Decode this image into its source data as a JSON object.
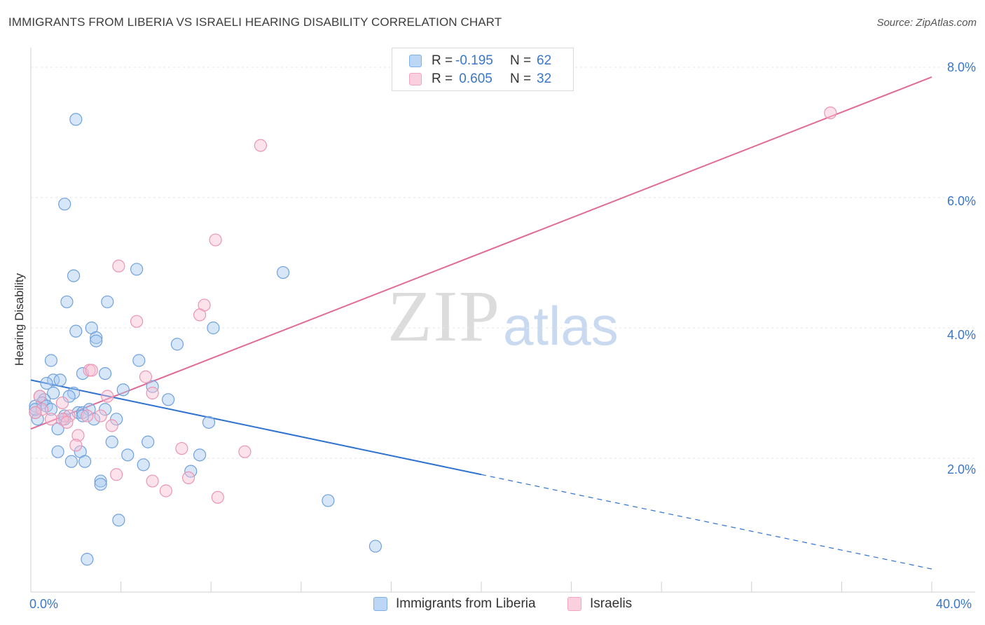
{
  "title": "IMMIGRANTS FROM LIBERIA VS ISRAELI HEARING DISABILITY CORRELATION CHART",
  "source": "Source: ZipAtlas.com",
  "watermark": {
    "zip": "ZIP",
    "atlas": "atlas"
  },
  "colors": {
    "blue": "#7fb0e8",
    "blue_line": "#2f72d0",
    "pink": "#f3a6c0",
    "pink_line": "#e06b97",
    "tick_text": "#3a76c9",
    "grid": "#e6e6e6"
  },
  "legend_top": [
    {
      "r_label": "R =",
      "r_value": "-0.195",
      "n_label": "N =",
      "n_value": "62"
    },
    {
      "r_label": "R =",
      "r_value": " 0.605",
      "n_label": "N =",
      "n_value": "32"
    }
  ],
  "legend_bottom": [
    "Immigrants from Liberia",
    "Israelis"
  ],
  "chart_data": {
    "type": "scatter",
    "title": "IMMIGRANTS FROM LIBERIA VS ISRAELI HEARING DISABILITY CORRELATION CHART",
    "xlabel": "",
    "ylabel": "Hearing Disability",
    "xlim": [
      0,
      40
    ],
    "ylim": [
      0,
      8.3
    ],
    "x_tick_labels": [
      "0.0%",
      "40.0%"
    ],
    "y_ticks": [
      2,
      4,
      6,
      8
    ],
    "y_tick_labels": [
      "2.0%",
      "4.0%",
      "6.0%",
      "8.0%"
    ],
    "series": [
      {
        "name": "Immigrants from Liberia",
        "r": -0.195,
        "n": 62,
        "trend": {
          "x0": 0,
          "y0": 3.2,
          "x1_solid": 20,
          "x1": 40,
          "y1": 0.3
        },
        "points": [
          [
            2.0,
            7.2
          ],
          [
            1.5,
            5.9
          ],
          [
            1.9,
            4.8
          ],
          [
            4.7,
            4.9
          ],
          [
            11.2,
            4.85
          ],
          [
            1.6,
            4.4
          ],
          [
            3.4,
            4.4
          ],
          [
            2.0,
            3.95
          ],
          [
            2.7,
            4.0
          ],
          [
            2.9,
            3.85
          ],
          [
            2.9,
            3.8
          ],
          [
            6.5,
            3.75
          ],
          [
            8.1,
            4.0
          ],
          [
            0.9,
            3.5
          ],
          [
            4.8,
            3.5
          ],
          [
            2.3,
            3.3
          ],
          [
            3.3,
            3.3
          ],
          [
            1.0,
            3.2
          ],
          [
            1.3,
            3.2
          ],
          [
            0.7,
            3.15
          ],
          [
            5.4,
            3.1
          ],
          [
            4.1,
            3.05
          ],
          [
            1.9,
            3.0
          ],
          [
            1.0,
            3.0
          ],
          [
            0.4,
            2.95
          ],
          [
            0.6,
            2.9
          ],
          [
            6.1,
            2.9
          ],
          [
            1.7,
            2.95
          ],
          [
            0.5,
            2.85
          ],
          [
            0.7,
            2.8
          ],
          [
            0.9,
            2.75
          ],
          [
            0.2,
            2.8
          ],
          [
            0.2,
            2.7
          ],
          [
            2.1,
            2.7
          ],
          [
            2.3,
            2.7
          ],
          [
            2.6,
            2.75
          ],
          [
            3.3,
            2.75
          ],
          [
            2.3,
            2.65
          ],
          [
            1.5,
            2.6
          ],
          [
            2.8,
            2.6
          ],
          [
            3.8,
            2.6
          ],
          [
            0.3,
            2.6
          ],
          [
            7.9,
            2.55
          ],
          [
            1.2,
            2.45
          ],
          [
            3.6,
            2.25
          ],
          [
            5.2,
            2.25
          ],
          [
            1.2,
            2.1
          ],
          [
            2.2,
            2.1
          ],
          [
            4.3,
            2.05
          ],
          [
            7.5,
            2.05
          ],
          [
            1.8,
            1.95
          ],
          [
            2.4,
            1.95
          ],
          [
            5.0,
            1.9
          ],
          [
            7.1,
            1.8
          ],
          [
            3.1,
            1.65
          ],
          [
            3.1,
            1.6
          ],
          [
            13.2,
            1.35
          ],
          [
            3.9,
            1.05
          ],
          [
            15.3,
            0.65
          ],
          [
            2.5,
            0.45
          ],
          [
            0.2,
            2.75
          ],
          [
            1.5,
            2.65
          ]
        ]
      },
      {
        "name": "Israelis",
        "r": 0.605,
        "n": 32,
        "trend": {
          "x0": 0,
          "y0": 2.45,
          "x1": 40,
          "y1": 7.85
        },
        "points": [
          [
            35.5,
            7.3
          ],
          [
            10.2,
            6.8
          ],
          [
            8.2,
            5.35
          ],
          [
            3.9,
            4.95
          ],
          [
            7.7,
            4.35
          ],
          [
            7.5,
            4.2
          ],
          [
            4.7,
            4.1
          ],
          [
            2.6,
            3.35
          ],
          [
            2.7,
            3.35
          ],
          [
            5.1,
            3.25
          ],
          [
            5.4,
            3.0
          ],
          [
            3.4,
            2.95
          ],
          [
            0.4,
            2.95
          ],
          [
            1.4,
            2.85
          ],
          [
            0.5,
            2.75
          ],
          [
            0.2,
            2.7
          ],
          [
            1.7,
            2.65
          ],
          [
            0.9,
            2.6
          ],
          [
            1.4,
            2.6
          ],
          [
            2.5,
            2.65
          ],
          [
            3.1,
            2.65
          ],
          [
            1.6,
            2.55
          ],
          [
            3.6,
            2.5
          ],
          [
            2.1,
            2.35
          ],
          [
            2.0,
            2.2
          ],
          [
            6.7,
            2.15
          ],
          [
            9.5,
            2.1
          ],
          [
            3.8,
            1.75
          ],
          [
            7.0,
            1.7
          ],
          [
            5.4,
            1.65
          ],
          [
            6.0,
            1.5
          ],
          [
            8.3,
            1.4
          ]
        ]
      }
    ]
  }
}
